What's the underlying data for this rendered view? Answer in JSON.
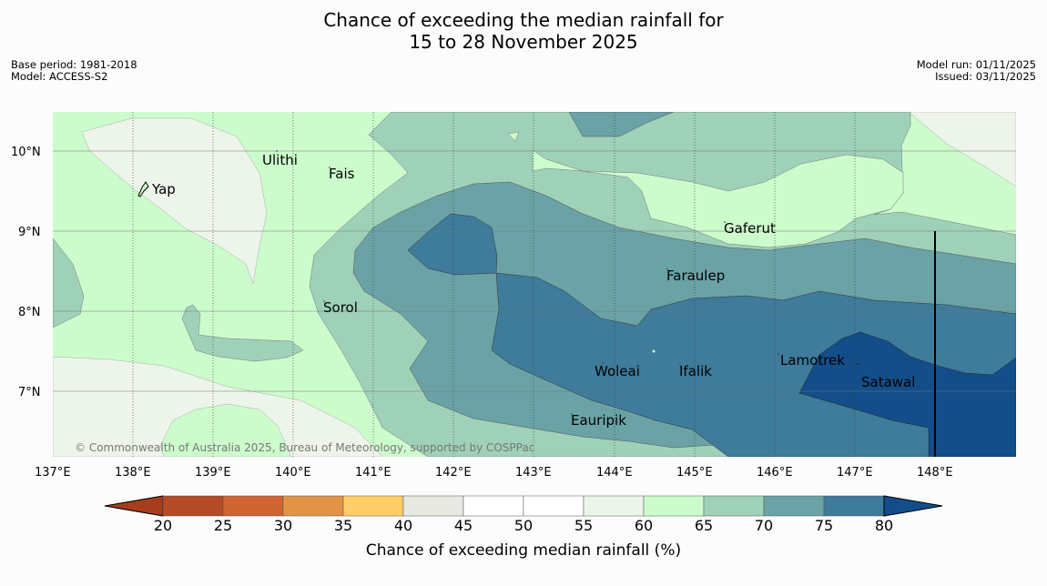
{
  "title": {
    "line1": "Chance of exceeding the median rainfall for",
    "line2": "15 to 28 November 2025"
  },
  "meta": {
    "base_period": "Base period: 1981-2018",
    "model": "Model: ACCESS-S2",
    "model_run": "Model run: 01/11/2025",
    "issued": "Issued: 03/11/2025"
  },
  "credit": "© Commonwealth of Australia 2025, Bureau of Meteorology, supported by COSPPac",
  "axes": {
    "lon_labels": [
      "137°E",
      "138°E",
      "139°E",
      "140°E",
      "141°E",
      "142°E",
      "143°E",
      "144°E",
      "145°E",
      "146°E",
      "147°E",
      "148°E"
    ],
    "lat_labels": [
      "10°N",
      "9°N",
      "8°N",
      "7°N"
    ]
  },
  "places": [
    {
      "name": "Yap"
    },
    {
      "name": "Ulithi"
    },
    {
      "name": "Fais"
    },
    {
      "name": "Gaferut"
    },
    {
      "name": "Faraulep"
    },
    {
      "name": "Sorol"
    },
    {
      "name": "Woleai"
    },
    {
      "name": "Ifalik"
    },
    {
      "name": "Lamotrek"
    },
    {
      "name": "Satawal"
    },
    {
      "name": "Eauripik"
    }
  ],
  "colorbar": {
    "title": "Chance of exceeding median rainfall (%)",
    "ticks": [
      "20",
      "25",
      "30",
      "35",
      "40",
      "45",
      "50",
      "55",
      "60",
      "65",
      "70",
      "75",
      "80"
    ],
    "colors": {
      "under": "#a63e1e",
      "bins": [
        "#b44a26",
        "#cf6532",
        "#e29446",
        "#fecd68",
        "#e9e9e3",
        "#ffffff",
        "#ffffff",
        "#edf5eb",
        "#ccfccc",
        "#9fd1b9",
        "#6aa2a6",
        "#3f7b9a"
      ],
      "over": "#134e8a"
    }
  },
  "legend_colors": {
    "c60": "#edf5eb",
    "c65": "#ccfccc",
    "c70": "#9fd1b9",
    "c75": "#6aa2a6",
    "c80": "#3f7b9a",
    "c85": "#134e8a"
  }
}
